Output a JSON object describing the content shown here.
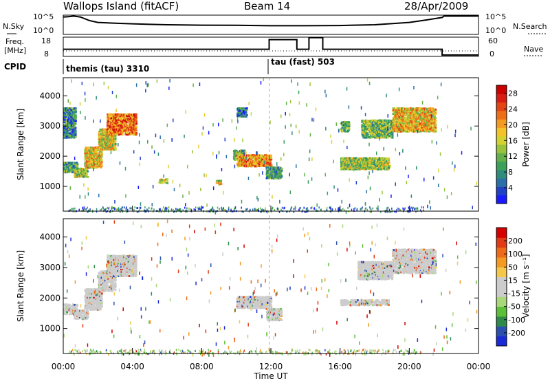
{
  "header": {
    "station": "Wallops Island (fitACF)",
    "beam": "Beam 14",
    "date": "28/Apr/2009"
  },
  "top_panels": {
    "left_sky_label": "N.Sky",
    "left_sky_ticks": [
      "10^5",
      "10^0"
    ],
    "right_search_label": "N.Search",
    "right_search_ticks": [
      "10^5",
      "10^0"
    ],
    "left_freq_label_1": "Freq.",
    "left_freq_label_2": "[MHz]",
    "left_freq_ticks": [
      "18",
      "8"
    ],
    "right_nave_label": "Nave",
    "right_nave_ticks": [
      "60",
      "0"
    ],
    "cpid_label": "CPID"
  },
  "cpid_modes": [
    {
      "label": "themis (tau) 3310",
      "start_hour": 0,
      "end_hour": 11.9
    },
    {
      "label": "tau (fast) 503",
      "start_hour": 11.9,
      "end_hour": 24
    }
  ],
  "x_axis": {
    "label": "Time UT",
    "tick_labels": [
      "00:00",
      "04:00",
      "08:00",
      "12:00",
      "16:00",
      "20:00",
      "00:00"
    ],
    "tick_hours": [
      0,
      4,
      8,
      12,
      16,
      20,
      24
    ]
  },
  "chart_data": [
    {
      "type": "line",
      "name": "N.Sky / N.Search",
      "x_hours": [
        0,
        0.3,
        0.6,
        1,
        1.5,
        2,
        3,
        4,
        5,
        6,
        8,
        10,
        12,
        14,
        16,
        18,
        20,
        21,
        21.9,
        22,
        23,
        24
      ],
      "y_frac": [
        0.9,
        0.92,
        0.95,
        0.9,
        0.72,
        0.62,
        0.58,
        0.55,
        0.52,
        0.5,
        0.48,
        0.47,
        0.45,
        0.45,
        0.46,
        0.5,
        0.62,
        0.75,
        0.88,
        0.95,
        0.95,
        0.95
      ],
      "ylabel": "N.Sky"
    },
    {
      "type": "line",
      "name": "Freq / Nave",
      "freq_steps": [
        {
          "from": 0,
          "to": 11.9,
          "value": 11
        },
        {
          "from": 11.9,
          "to": 13.5,
          "value": 16
        },
        {
          "from": 13.5,
          "to": 14.2,
          "value": 11
        },
        {
          "from": 14.2,
          "to": 15.0,
          "value": 17
        },
        {
          "from": 15.0,
          "to": 21.9,
          "value": 11
        },
        {
          "from": 21.9,
          "to": 24,
          "value": 8
        }
      ],
      "ylabel": "Freq. [MHz]",
      "ylim": [
        8,
        18
      ]
    },
    {
      "type": "heatmap",
      "ylabel": "Slant Range [km]",
      "y_ticks": [
        1000,
        2000,
        3000,
        4000
      ],
      "ylim": [
        180,
        4600
      ],
      "xlim_hours": [
        0,
        24
      ],
      "colorbar": {
        "label": "Power [dB]",
        "ticks": [
          "4",
          "8",
          "12",
          "16",
          "20",
          "24",
          "28"
        ],
        "tick_values": [
          4,
          8,
          12,
          16,
          20,
          24,
          28
        ],
        "range": [
          0,
          30
        ],
        "colors": [
          "#1a1aff",
          "#2140c8",
          "#2a6fa8",
          "#2f8c7c",
          "#3aa05a",
          "#63b04a",
          "#9ac23b",
          "#d4d230",
          "#f2c42a",
          "#f39a20",
          "#ee6e18",
          "#e34414",
          "#d81c14",
          "#cc0000"
        ]
      },
      "regions": [
        {
          "t0": 0.0,
          "t1": 0.8,
          "r0": 1450,
          "r1": 1800,
          "level": 0.35
        },
        {
          "t0": 0.6,
          "t1": 1.4,
          "r0": 1300,
          "r1": 1600,
          "level": 0.45
        },
        {
          "t0": 1.2,
          "t1": 2.2,
          "r0": 1600,
          "r1": 2300,
          "level": 0.6
        },
        {
          "t0": 2.0,
          "t1": 3.0,
          "r0": 2200,
          "r1": 2900,
          "level": 0.55
        },
        {
          "t0": 2.5,
          "t1": 4.2,
          "r0": 2700,
          "r1": 3400,
          "level": 0.75
        },
        {
          "t0": 0.0,
          "t1": 0.7,
          "r0": 2600,
          "r1": 3600,
          "level": 0.25
        },
        {
          "t0": 9.8,
          "t1": 10.5,
          "r0": 1850,
          "r1": 2200,
          "level": 0.4
        },
        {
          "t0": 10.0,
          "t1": 12.0,
          "r0": 1650,
          "r1": 2050,
          "level": 0.7
        },
        {
          "t0": 11.7,
          "t1": 12.6,
          "r0": 1250,
          "r1": 1650,
          "level": 0.3
        },
        {
          "t0": 10.0,
          "t1": 10.6,
          "r0": 3300,
          "r1": 3600,
          "level": 0.2
        },
        {
          "t0": 16.0,
          "t1": 18.8,
          "r0": 1550,
          "r1": 1950,
          "level": 0.45
        },
        {
          "t0": 16.0,
          "t1": 16.5,
          "r0": 2800,
          "r1": 3150,
          "level": 0.35
        },
        {
          "t0": 17.2,
          "t1": 19.0,
          "r0": 2600,
          "r1": 3200,
          "level": 0.4
        },
        {
          "t0": 19.0,
          "t1": 21.5,
          "r0": 2800,
          "r1": 3600,
          "level": 0.6
        },
        {
          "t0": 5.5,
          "t1": 6.0,
          "r0": 1100,
          "r1": 1250,
          "level": 0.5
        },
        {
          "t0": 8.8,
          "t1": 9.1,
          "r0": 1050,
          "r1": 1200,
          "level": 0.55
        }
      ]
    },
    {
      "type": "heatmap",
      "ylabel": "Slant Range [km]",
      "y_ticks": [
        1000,
        2000,
        3000,
        4000
      ],
      "ylim": [
        180,
        4600
      ],
      "xlim_hours": [
        0,
        24
      ],
      "colorbar": {
        "label": "Velocity [m s⁻¹]",
        "ticks": [
          "200",
          "100",
          "50",
          "15",
          "-15",
          "-50",
          "-100",
          "-200"
        ],
        "colors": [
          "#1a2ad8",
          "#2a4fb0",
          "#2e8a4a",
          "#5cbf38",
          "#a8d87a",
          "#cccccc",
          "#cccccc",
          "#f6c84a",
          "#f49a22",
          "#ee6a18",
          "#e23a14",
          "#d60000"
        ]
      },
      "regions": [
        {
          "t0": 0.0,
          "t1": 0.8,
          "r0": 1450,
          "r1": 1800,
          "level": 0.5
        },
        {
          "t0": 0.6,
          "t1": 1.4,
          "r0": 1300,
          "r1": 1600,
          "level": 0.5
        },
        {
          "t0": 1.2,
          "t1": 2.2,
          "r0": 1600,
          "r1": 2300,
          "level": 0.5
        },
        {
          "t0": 2.0,
          "t1": 3.0,
          "r0": 2200,
          "r1": 2900,
          "level": 0.5
        },
        {
          "t0": 2.5,
          "t1": 4.2,
          "r0": 2700,
          "r1": 3400,
          "level": 0.52
        },
        {
          "t0": 10.0,
          "t1": 12.0,
          "r0": 1650,
          "r1": 2050,
          "level": 0.5
        },
        {
          "t0": 11.7,
          "t1": 12.6,
          "r0": 1250,
          "r1": 1650,
          "level": 0.5
        },
        {
          "t0": 16.0,
          "t1": 18.8,
          "r0": 1750,
          "r1": 1950,
          "level": 0.55
        },
        {
          "t0": 17.0,
          "t1": 19.0,
          "r0": 2600,
          "r1": 3200,
          "level": 0.5
        },
        {
          "t0": 19.0,
          "t1": 21.5,
          "r0": 2800,
          "r1": 3600,
          "level": 0.5
        }
      ]
    }
  ]
}
